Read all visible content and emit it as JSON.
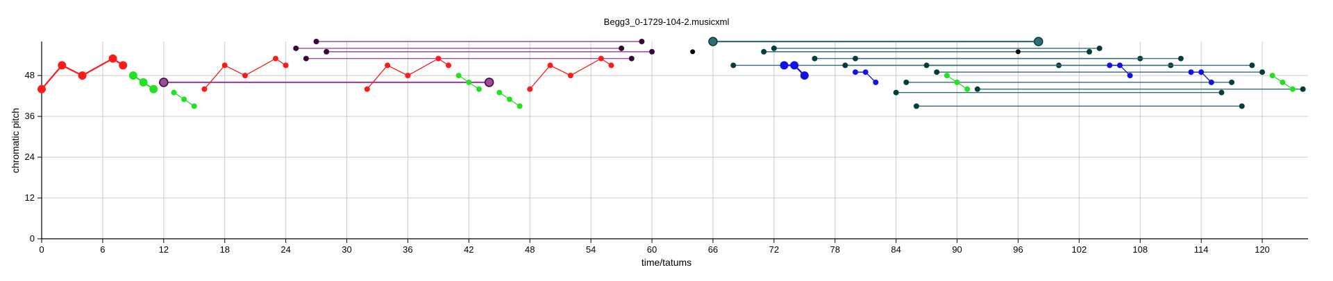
{
  "chart_data": {
    "type": "scatter",
    "title": "Begg3_0-1729-104-2.musicxml",
    "xlabel": "time/tatums",
    "ylabel": "chromatic pitch",
    "xlim": [
      0,
      124.5
    ],
    "ylim": [
      0,
      58
    ],
    "xticks": [
      0,
      6,
      12,
      18,
      24,
      30,
      36,
      42,
      48,
      54,
      60,
      66,
      72,
      78,
      84,
      90,
      96,
      102,
      108,
      114,
      120
    ],
    "yticks": [
      0,
      12,
      24,
      36,
      48
    ],
    "grid": true,
    "colors": {
      "red": "#ff1a1a",
      "green": "#22e022",
      "blue": "#1212e6",
      "purple": "#9a4a9a",
      "dark_purple": "#3a0838",
      "teal": "#2e6e74",
      "dark_teal": "#073c3c",
      "black": "#000000",
      "grid": "#cccccc"
    },
    "series": [
      {
        "color": "red",
        "size": "large",
        "points": [
          [
            0,
            44
          ],
          [
            2,
            51
          ],
          [
            4,
            48
          ],
          [
            7,
            53
          ],
          [
            8,
            51
          ]
        ]
      },
      {
        "color": "green",
        "size": "large",
        "points": [
          [
            9,
            48
          ],
          [
            10,
            46
          ],
          [
            11,
            44
          ]
        ]
      },
      {
        "color": "green",
        "size": "small",
        "points": [
          [
            13,
            43
          ],
          [
            14,
            41
          ],
          [
            15,
            39
          ]
        ]
      },
      {
        "color": "red",
        "size": "small",
        "points": [
          [
            16,
            44
          ],
          [
            18,
            51
          ],
          [
            20,
            48
          ],
          [
            23,
            53
          ],
          [
            24,
            51
          ]
        ]
      },
      {
        "color": "red",
        "size": "small",
        "points": [
          [
            32,
            44
          ],
          [
            34,
            51
          ],
          [
            36,
            48
          ],
          [
            39,
            53
          ],
          [
            40,
            51
          ]
        ]
      },
      {
        "color": "green",
        "size": "small",
        "points": [
          [
            41,
            48
          ],
          [
            42,
            46
          ],
          [
            43,
            44
          ]
        ]
      },
      {
        "color": "green",
        "size": "small",
        "points": [
          [
            45,
            43
          ],
          [
            46,
            41
          ],
          [
            47,
            39
          ]
        ]
      },
      {
        "color": "red",
        "size": "small",
        "points": [
          [
            48,
            44
          ],
          [
            50,
            51
          ],
          [
            52,
            48
          ],
          [
            55,
            53
          ],
          [
            56,
            51
          ]
        ]
      },
      {
        "color": "blue",
        "size": "large",
        "points": [
          [
            73,
            51
          ],
          [
            74,
            51
          ],
          [
            75,
            48
          ]
        ]
      },
      {
        "color": "blue",
        "size": "small",
        "points": [
          [
            80,
            49
          ],
          [
            81,
            49
          ],
          [
            82,
            46
          ]
        ]
      },
      {
        "color": "green",
        "size": "small",
        "points": [
          [
            89,
            48
          ],
          [
            90,
            46
          ],
          [
            91,
            44
          ]
        ]
      },
      {
        "color": "blue",
        "size": "small",
        "points": [
          [
            105,
            51
          ],
          [
            106,
            51
          ],
          [
            107,
            48
          ]
        ]
      },
      {
        "color": "blue",
        "size": "small",
        "points": [
          [
            113,
            49
          ],
          [
            114,
            49
          ],
          [
            115,
            46
          ]
        ]
      },
      {
        "color": "green",
        "size": "small",
        "points": [
          [
            121,
            48
          ],
          [
            122,
            46
          ],
          [
            123,
            44
          ]
        ]
      }
    ],
    "spans": [
      {
        "color": "purple",
        "size": "large",
        "x1": 12,
        "x2": 44,
        "y": 46
      },
      {
        "color": "purple",
        "size": "small",
        "x1": 27,
        "x2": 59,
        "y": 58
      },
      {
        "color": "purple",
        "size": "small",
        "x1": 25,
        "x2": 57,
        "y": 56
      },
      {
        "color": "purple",
        "size": "small",
        "x1": 28,
        "x2": 60,
        "y": 55
      },
      {
        "color": "purple",
        "size": "small",
        "x1": 26,
        "x2": 58,
        "y": 53
      },
      {
        "color": "teal",
        "size": "large",
        "x1": 66,
        "x2": 98,
        "y": 58
      },
      {
        "color": "teal",
        "size": "small",
        "x1": 72,
        "x2": 104,
        "y": 56
      },
      {
        "color": "teal",
        "size": "small",
        "x1": 71,
        "x2": 103,
        "y": 55
      },
      {
        "color": "teal",
        "size": "small",
        "x1": 76,
        "x2": 108,
        "y": 53
      },
      {
        "color": "teal",
        "size": "small",
        "x1": 80,
        "x2": 112,
        "y": 53
      },
      {
        "color": "teal",
        "size": "small",
        "x1": 68,
        "x2": 100,
        "y": 51
      },
      {
        "color": "teal",
        "size": "small",
        "x1": 79,
        "x2": 111,
        "y": 51
      },
      {
        "color": "teal",
        "size": "small",
        "x1": 87,
        "x2": 119,
        "y": 51
      },
      {
        "color": "teal",
        "size": "small",
        "x1": 88,
        "x2": 120,
        "y": 49
      },
      {
        "color": "teal",
        "size": "small",
        "x1": 85,
        "x2": 117,
        "y": 46
      },
      {
        "color": "teal",
        "size": "small",
        "x1": 92,
        "x2": 124,
        "y": 44
      },
      {
        "color": "teal",
        "size": "small",
        "x1": 84,
        "x2": 116,
        "y": 43
      },
      {
        "color": "teal",
        "size": "small",
        "x1": 86,
        "x2": 118,
        "y": 39
      }
    ],
    "isolated": [
      {
        "color": "black",
        "x": 64,
        "y": 55
      },
      {
        "color": "black",
        "x": 96,
        "y": 55
      }
    ]
  }
}
